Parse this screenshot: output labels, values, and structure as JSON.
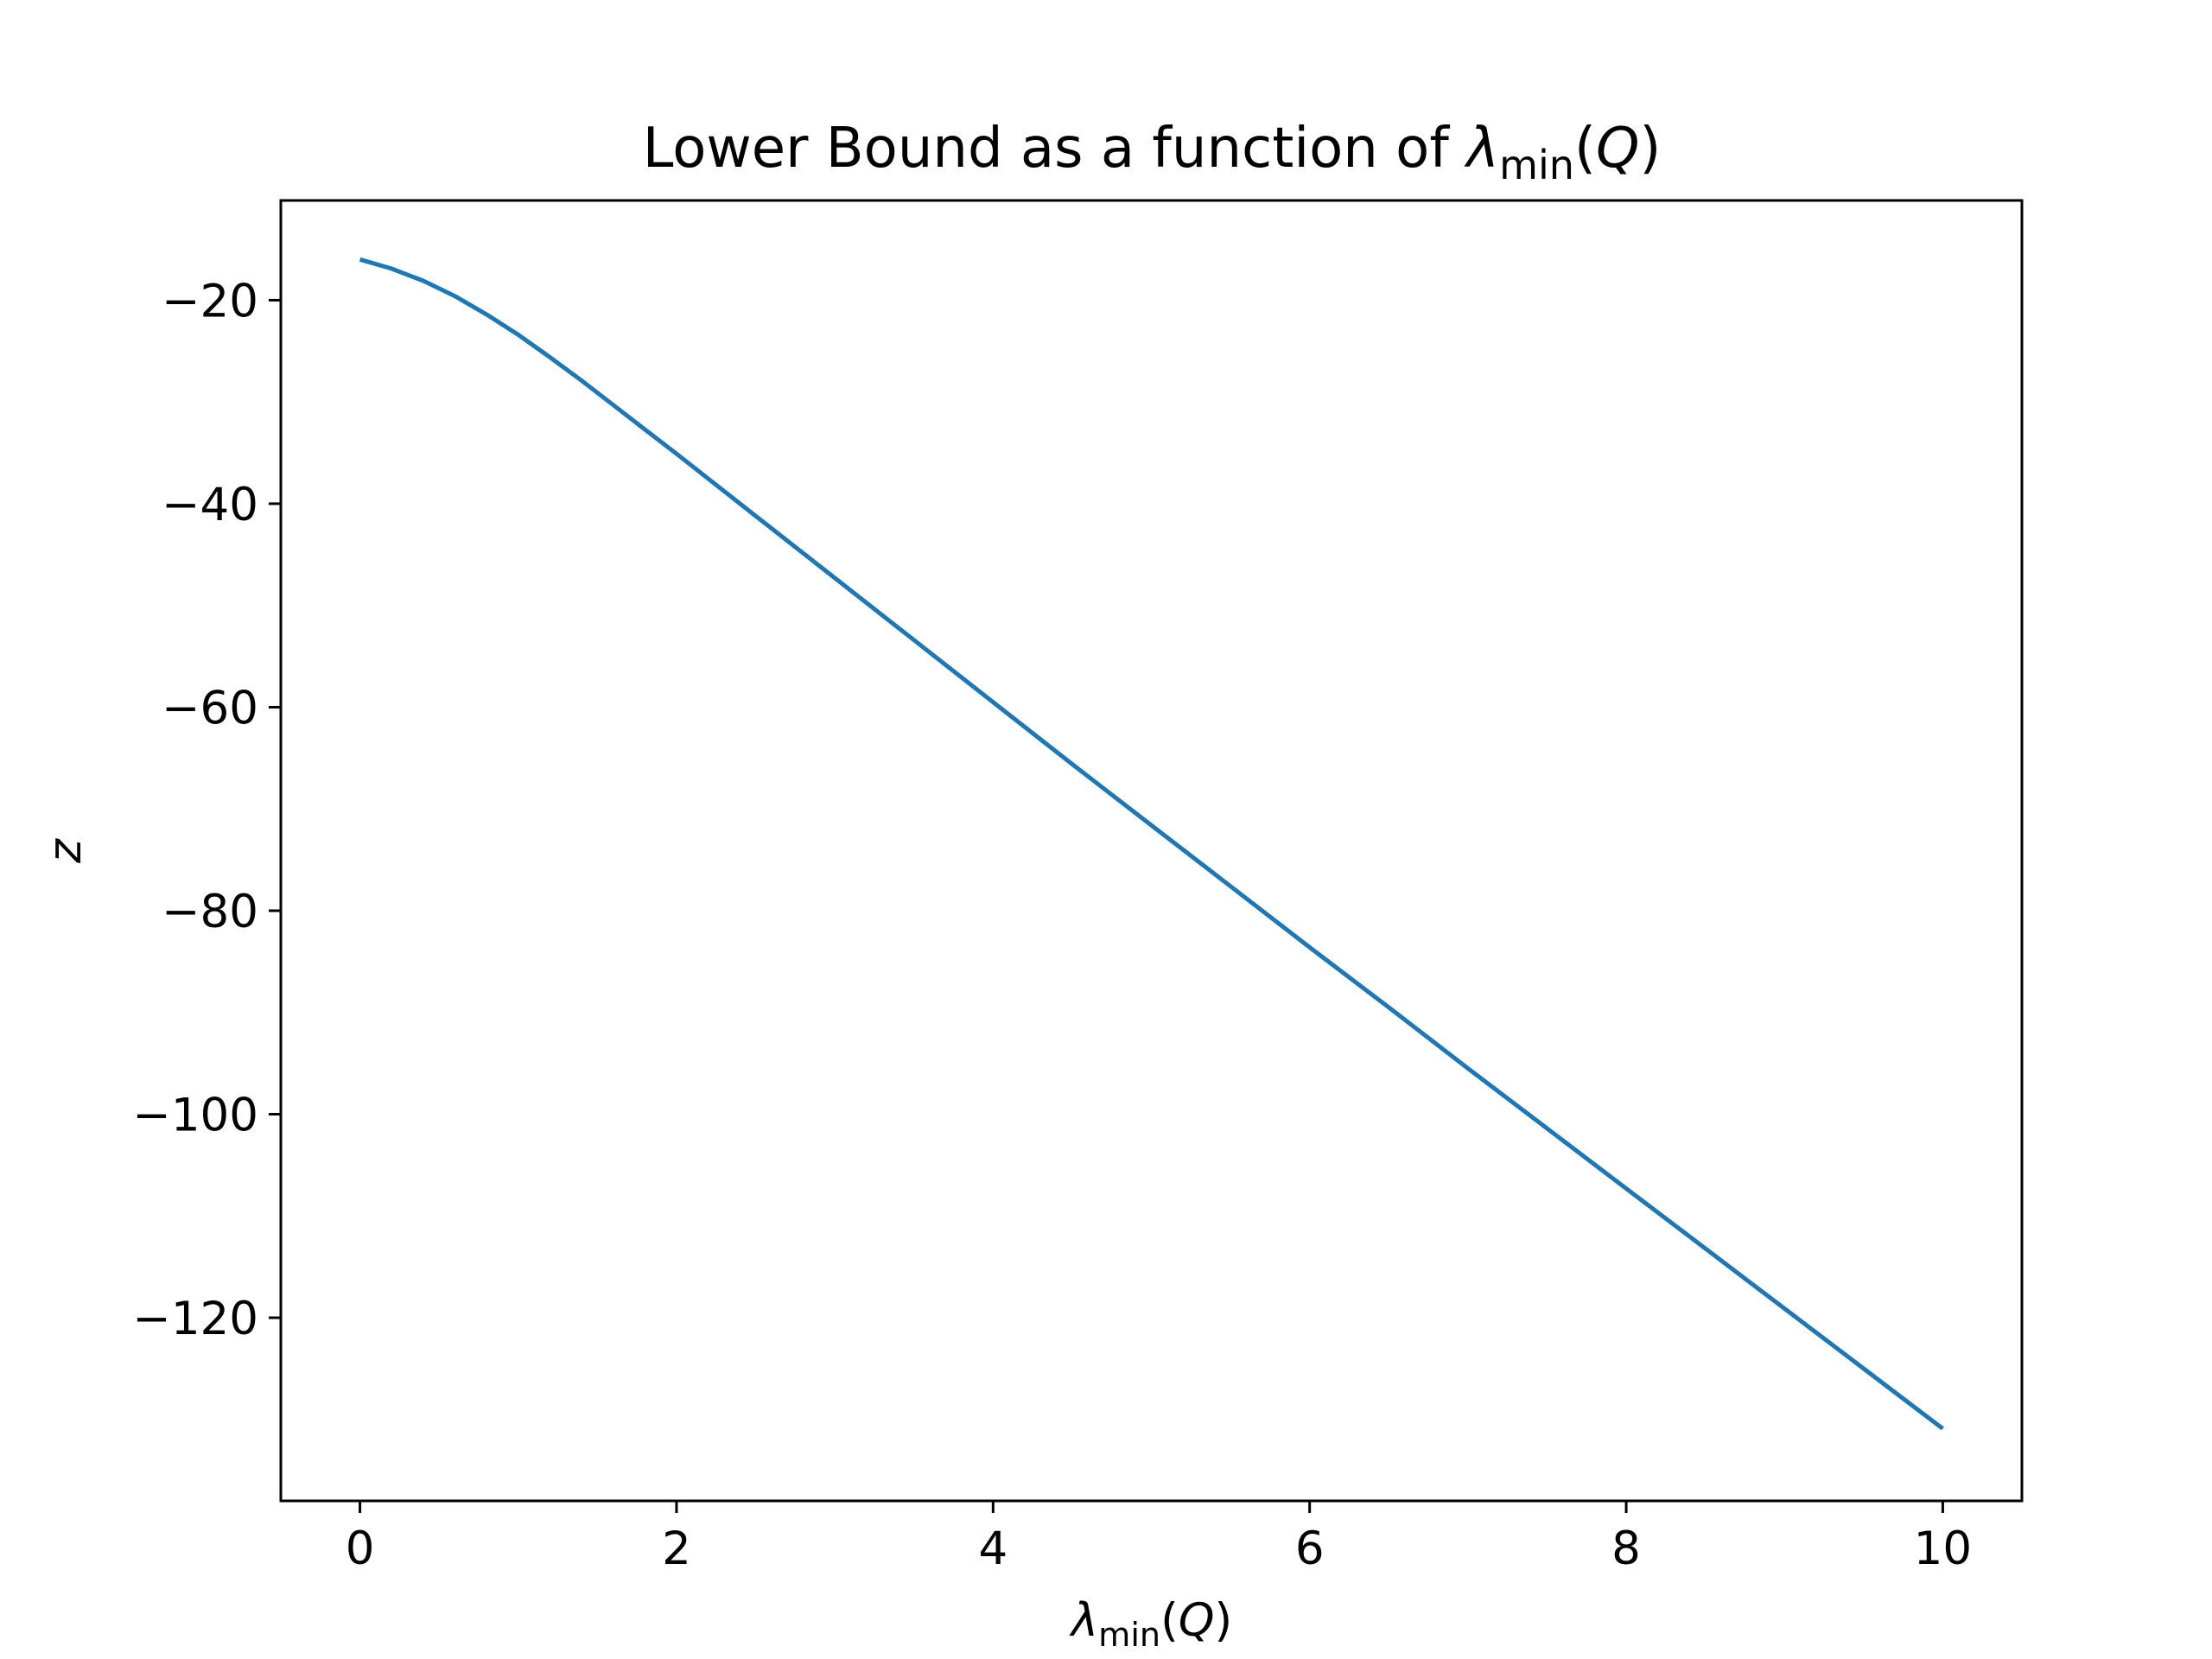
{
  "chart_data": {
    "type": "line",
    "title": {
      "prefix": "Lower Bound as a function of ",
      "symbol": "λ",
      "subscript": "min",
      "open": "(",
      "arg": "Q",
      "close": ")"
    },
    "xlabel": {
      "symbol": "λ",
      "subscript": "min",
      "open": "(",
      "arg": "Q",
      "close": ")"
    },
    "ylabel": "z",
    "xlim": [
      -0.5,
      10.5
    ],
    "ylim": [
      -138,
      -10.2
    ],
    "xticks": [
      0,
      2,
      4,
      6,
      8,
      10
    ],
    "xtick_labels": [
      "0",
      "2",
      "4",
      "6",
      "8",
      "10"
    ],
    "yticks": [
      -20,
      -40,
      -60,
      -80,
      -100,
      -120
    ],
    "ytick_labels": [
      "−20",
      "−40",
      "−60",
      "−80",
      "−100",
      "−120"
    ],
    "grid": false,
    "legend": false,
    "line_color": "#1f77b4",
    "series": [
      {
        "x": [
          0,
          0.2,
          0.4,
          0.6,
          0.8,
          1.0,
          1.2,
          1.4,
          1.6,
          1.8,
          2.0,
          2.5,
          3.0,
          3.5,
          4.0,
          4.5,
          5.0,
          5.5,
          6.0,
          6.5,
          7.0,
          7.5,
          8.0,
          8.5,
          9.0,
          9.5,
          10.0
        ],
        "y": [
          -16.0,
          -16.9,
          -18.1,
          -19.6,
          -21.4,
          -23.4,
          -25.6,
          -27.9,
          -30.3,
          -32.7,
          -35.1,
          -41.2,
          -47.3,
          -53.4,
          -59.5,
          -65.6,
          -71.6,
          -77.6,
          -83.6,
          -89.5,
          -95.5,
          -101.4,
          -107.3,
          -113.2,
          -119.1,
          -125.0,
          -130.9
        ]
      }
    ]
  }
}
